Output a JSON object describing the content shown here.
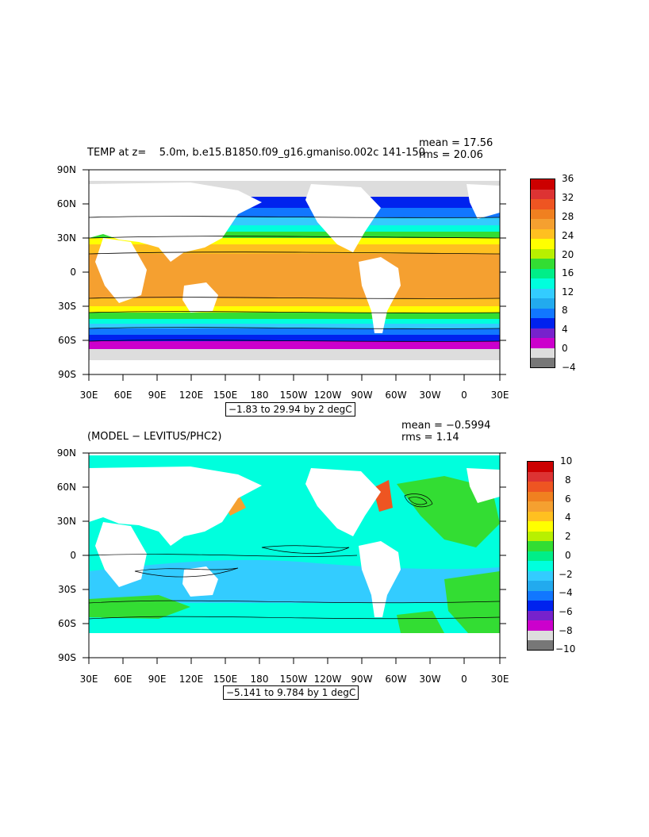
{
  "panels": [
    {
      "title": "TEMP at z=    5.0m, b.e15.B1850.f09_g16.gmaniso.002c 141-150",
      "mean": "mean = 17.56",
      "rms": "rms = 20.06",
      "range": "−1.83 to 29.94 by 2 degC",
      "lat_ticks": [
        "90N",
        "60N",
        "30N",
        "0",
        "30S",
        "60S",
        "90S"
      ],
      "lon_ticks": [
        "30E",
        "60E",
        "90E",
        "120E",
        "150E",
        "180",
        "150W",
        "120W",
        "90W",
        "60W",
        "30W",
        "0",
        "30E"
      ],
      "colorbar": {
        "labels": [
          "36",
          "32",
          "28",
          "24",
          "20",
          "16",
          "12",
          "8",
          "4",
          "0",
          "−4"
        ],
        "colors": [
          "#cc0000",
          "#dd3333",
          "#ee5522",
          "#f08020",
          "#f5a030",
          "#ffc020",
          "#ffff00",
          "#b8f000",
          "#33dd33",
          "#00ee88",
          "#00ffdd",
          "#33ccff",
          "#22aaee",
          "#1177ff",
          "#0022ee",
          "#7722cc",
          "#cc00cc",
          "#dddddd",
          "#777777"
        ]
      }
    },
    {
      "title": "(MODEL − LEVITUS/PHC2)",
      "mean": "mean = −0.5994",
      "rms": "rms = 1.14",
      "range": "−5.141 to 9.784 by 1 degC",
      "lat_ticks": [
        "90N",
        "60N",
        "30N",
        "0",
        "30S",
        "60S",
        "90S"
      ],
      "lon_ticks": [
        "30E",
        "60E",
        "90E",
        "120E",
        "150E",
        "180",
        "150W",
        "120W",
        "90W",
        "60W",
        "30W",
        "0",
        "30E"
      ],
      "colorbar": {
        "labels": [
          "10",
          "8",
          "6",
          "4",
          "2",
          "0",
          "−2",
          "−4",
          "−6",
          "−8",
          "−10"
        ],
        "colors": [
          "#cc0000",
          "#dd3333",
          "#ee5522",
          "#f08020",
          "#f5a030",
          "#ffc020",
          "#ffff00",
          "#b8f000",
          "#33dd33",
          "#00ee88",
          "#00ffdd",
          "#33ccff",
          "#22aaee",
          "#1177ff",
          "#0022ee",
          "#7722cc",
          "#cc00cc",
          "#dddddd",
          "#777777"
        ]
      }
    }
  ]
}
